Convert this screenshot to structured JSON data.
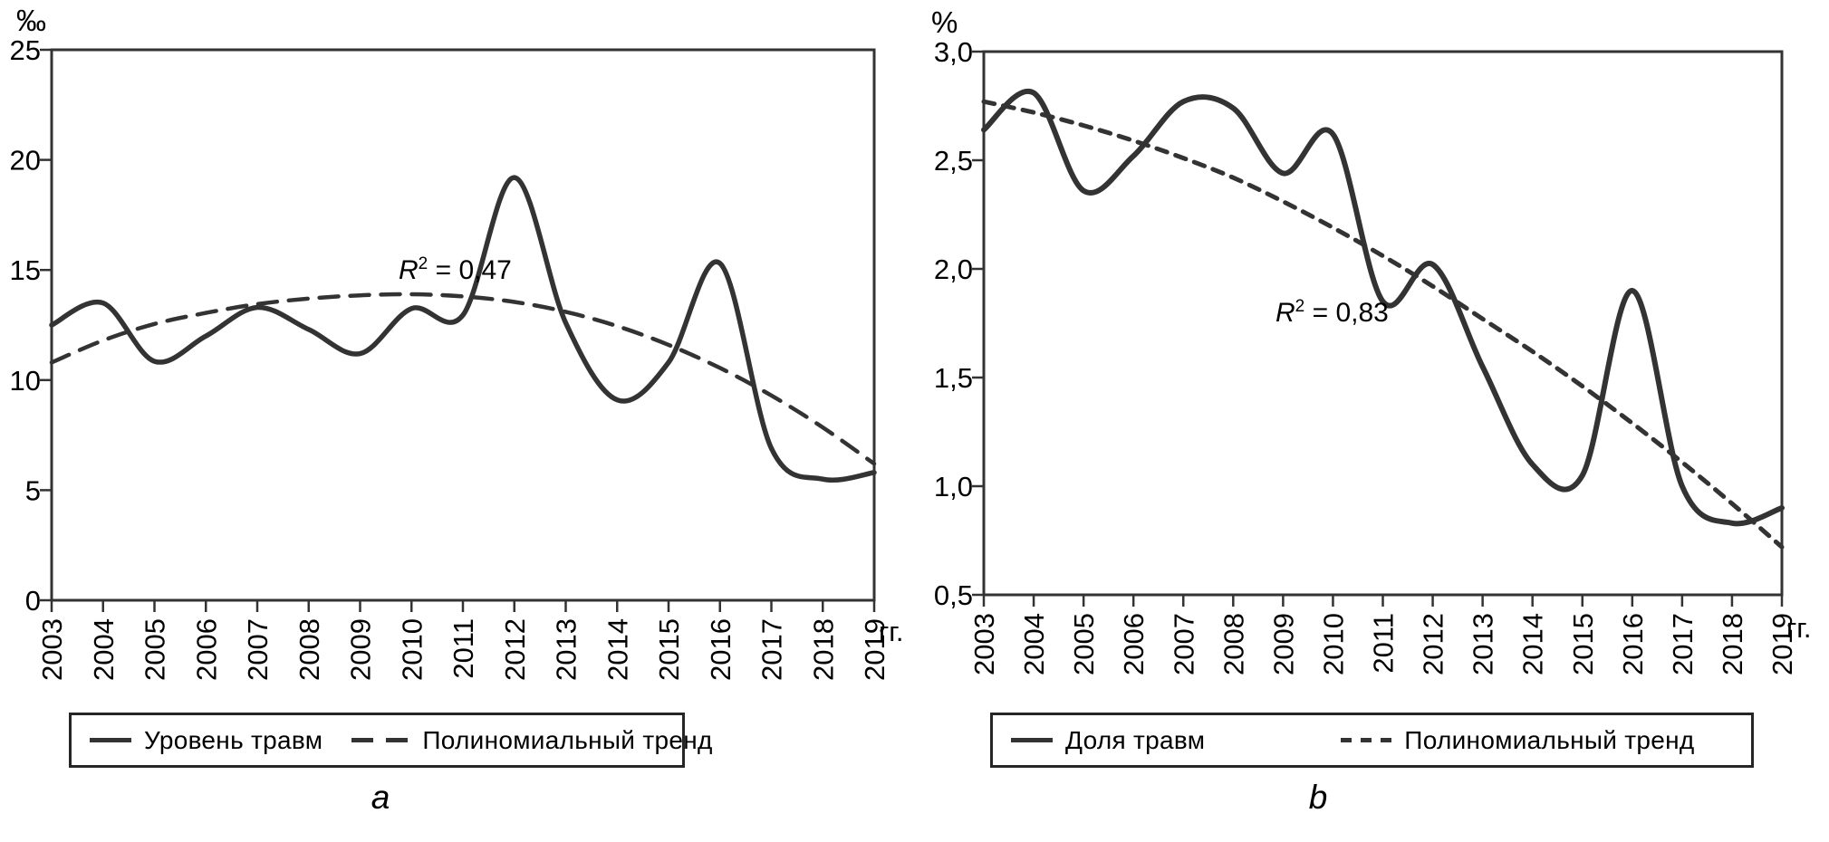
{
  "colors": {
    "line": "#333333",
    "axis": "#333333",
    "text": "#000000",
    "background": "#ffffff"
  },
  "chart_data": [
    {
      "type": "line",
      "panel": "a",
      "caption": "a",
      "unit_label": "‰",
      "x_axis_label": "гг.",
      "grid": false,
      "legend_position": "bottom",
      "x": [
        2003,
        2004,
        2005,
        2006,
        2007,
        2008,
        2009,
        2010,
        2011,
        2012,
        2013,
        2014,
        2015,
        2016,
        2017,
        2018,
        2019
      ],
      "x_tick_labels": [
        "2003",
        "2004",
        "2005",
        "2006",
        "2007",
        "2008",
        "2009",
        "2010",
        "2011",
        "2012",
        "2013",
        "2014",
        "2015",
        "2016",
        "2017",
        "2018",
        "2019"
      ],
      "ylim": [
        0,
        25
      ],
      "y_ticks": {
        "values": [
          0,
          5,
          10,
          15,
          20,
          25
        ],
        "labels": [
          "0",
          "5",
          "10",
          "15",
          "20",
          "25"
        ]
      },
      "series": [
        {
          "name": "Уровень травм",
          "style": "solid",
          "values": [
            12.5,
            13.5,
            10.85,
            12.0,
            13.3,
            12.3,
            11.2,
            13.25,
            12.95,
            19.2,
            12.6,
            9.1,
            10.8,
            15.3,
            6.9,
            5.5,
            5.8
          ]
        },
        {
          "name": "Полиномиальный тренд",
          "style": "dashed",
          "values": [
            10.8,
            11.8,
            12.55,
            13.05,
            13.45,
            13.7,
            13.85,
            13.9,
            13.8,
            13.55,
            13.1,
            12.45,
            11.6,
            10.55,
            9.3,
            7.85,
            6.2
          ]
        }
      ],
      "annotation": {
        "base": "R",
        "sup": "2",
        "rest": " = 0,47"
      }
    },
    {
      "type": "line",
      "panel": "b",
      "caption": "b",
      "unit_label": "%",
      "x_axis_label": "гг.",
      "grid": false,
      "legend_position": "bottom",
      "x": [
        2003,
        2004,
        2005,
        2006,
        2007,
        2008,
        2009,
        2010,
        2011,
        2012,
        2013,
        2014,
        2015,
        2016,
        2017,
        2018,
        2019
      ],
      "x_tick_labels": [
        "2003",
        "2004",
        "2005",
        "2006",
        "2007",
        "2008",
        "2009",
        "2010",
        "2011",
        "2012",
        "2013",
        "2014",
        "2015",
        "2016",
        "2017",
        "2018",
        "2019"
      ],
      "ylim": [
        0.5,
        3.0
      ],
      "y_ticks": {
        "values": [
          0.5,
          1.0,
          1.5,
          2.0,
          2.5,
          3.0
        ],
        "labels": [
          "0,5",
          "1,0",
          "1,5",
          "2,0",
          "2,5",
          "3,0"
        ]
      },
      "series": [
        {
          "name": "Доля травм",
          "style": "solid",
          "values": [
            2.64,
            2.81,
            2.36,
            2.52,
            2.77,
            2.74,
            2.44,
            2.62,
            1.85,
            2.02,
            1.55,
            1.1,
            1.05,
            1.9,
            1.0,
            0.83,
            0.9
          ]
        },
        {
          "name": "Полиномиальный тренд",
          "style": "dotted",
          "values": [
            2.77,
            2.72,
            2.66,
            2.59,
            2.51,
            2.42,
            2.31,
            2.19,
            2.06,
            1.92,
            1.77,
            1.62,
            1.46,
            1.29,
            1.11,
            0.92,
            0.72
          ]
        }
      ],
      "annotation": {
        "base": "R",
        "sup": "2",
        "rest": " = 0,83"
      }
    }
  ]
}
